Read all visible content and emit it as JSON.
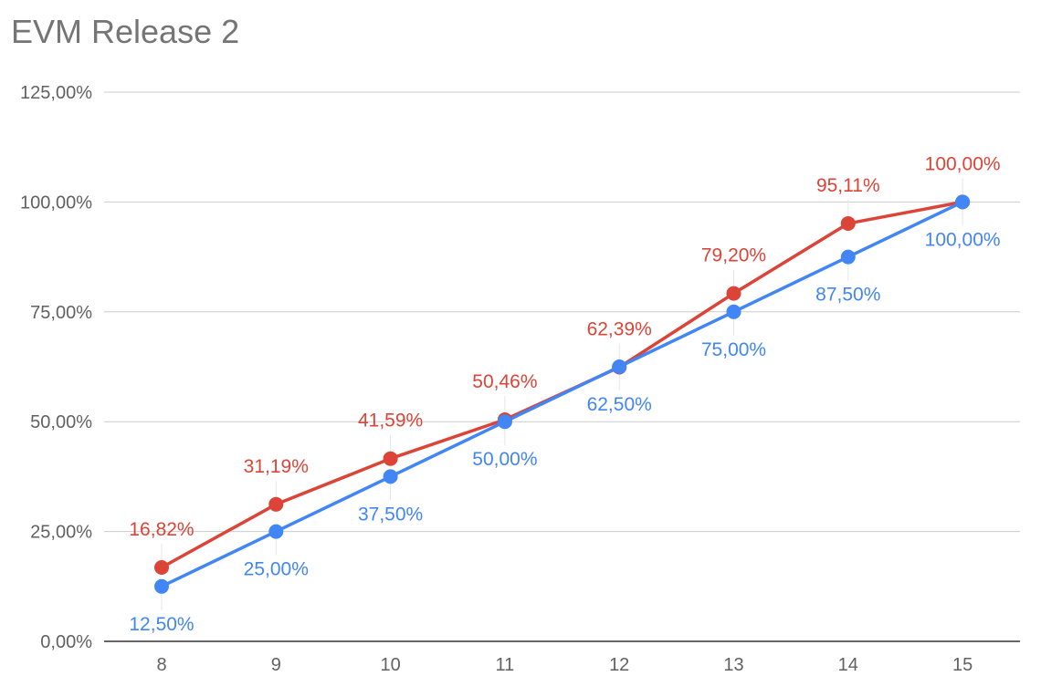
{
  "chart_data": {
    "type": "line",
    "title": "EVM Release 2",
    "x": [
      "8",
      "9",
      "10",
      "11",
      "12",
      "13",
      "14",
      "15"
    ],
    "y_ticks": [
      "0,00%",
      "25,00%",
      "50,00%",
      "75,00%",
      "100,00%",
      "125,00%"
    ],
    "ylim": [
      0,
      125
    ],
    "grid": true,
    "legend": "none",
    "series": [
      {
        "color": "#DB4437",
        "values": [
          16.82,
          31.19,
          41.59,
          50.46,
          62.39,
          79.2,
          95.11,
          100.0
        ],
        "labels": [
          "16,82%",
          "31,19%",
          "41,59%",
          "50,46%",
          "62,39%",
          "79,20%",
          "95,11%",
          "100,00%"
        ]
      },
      {
        "color": "#4285F4",
        "values": [
          12.5,
          25.0,
          37.5,
          50.0,
          62.5,
          75.0,
          87.5,
          100.0
        ],
        "labels": [
          "12,50%",
          "25,00%",
          "37,50%",
          "50,00%",
          "62,50%",
          "75,00%",
          "87,50%",
          "100,00%"
        ]
      }
    ]
  }
}
